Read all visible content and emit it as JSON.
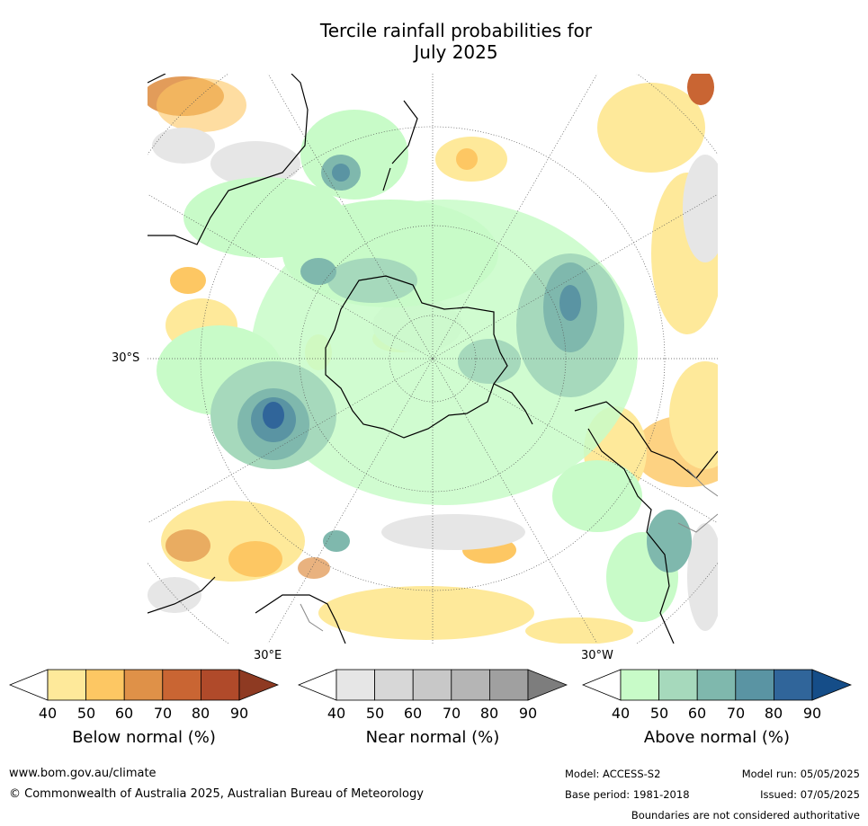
{
  "title_line1": "Tercile rainfall probabilities for",
  "title_line2": "July 2025",
  "map": {
    "projection": "south-polar-stereographic",
    "labels": {
      "lat_30s": "30°S",
      "lon_30e": "30°E",
      "lon_30w": "30°W"
    },
    "colors": {
      "coastline": "#000000",
      "country_border": "#888888",
      "graticule": "#555555"
    }
  },
  "colorbars": [
    {
      "id": "below",
      "label": "Below normal (%)",
      "ticks": [
        "40",
        "50",
        "60",
        "70",
        "80",
        "90"
      ],
      "low_color": "#ffffff",
      "colors": [
        "#fee99a",
        "#fdc763",
        "#df9148",
        "#c96533",
        "#b04a2a"
      ],
      "high_color": "#8e3a22"
    },
    {
      "id": "near",
      "label": "Near normal (%)",
      "ticks": [
        "40",
        "50",
        "60",
        "70",
        "80",
        "90"
      ],
      "low_color": "#ffffff",
      "colors": [
        "#e6e6e6",
        "#d7d7d7",
        "#c8c8c8",
        "#b5b5b5",
        "#a0a0a0"
      ],
      "high_color": "#7d7d7d"
    },
    {
      "id": "above",
      "label": "Above normal (%)",
      "ticks": [
        "40",
        "50",
        "60",
        "70",
        "80",
        "90"
      ],
      "low_color": "#ffffff",
      "colors": [
        "#c8fbc8",
        "#a6d9bc",
        "#7fb8ad",
        "#5a94a3",
        "#30659a"
      ],
      "high_color": "#154d88"
    }
  ],
  "footer": {
    "website": "www.bom.gov.au/climate",
    "copyright": "© Commonwealth of Australia 2025, Australian Bureau of Meteorology",
    "model": "Model: ACCESS-S2",
    "base_period": "Base period: 1981-2018",
    "model_run": "Model run: 05/05/2025",
    "issued": "Issued: 07/05/2025",
    "disclaimer": "Boundaries are not considered authoritative"
  }
}
